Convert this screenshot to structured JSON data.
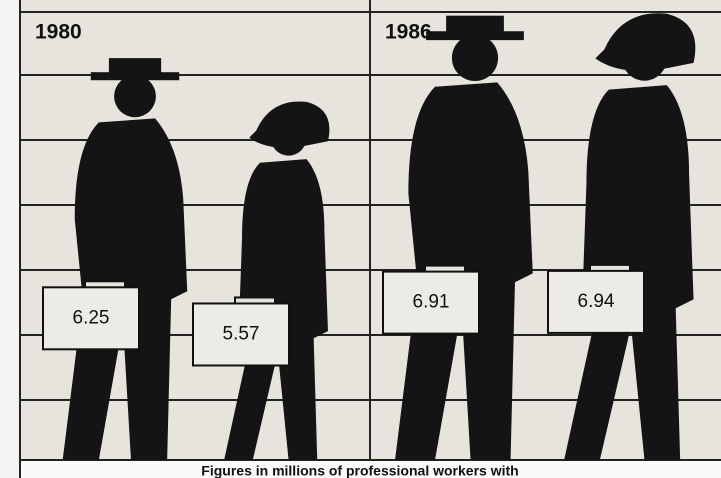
{
  "chart_data": {
    "type": "pictograph",
    "categories": [
      "1980",
      "1986"
    ],
    "series": [
      {
        "color": "#141414",
        "values": [
          6.25,
          6.91
        ]
      },
      {
        "color": "#141414",
        "values": [
          5.57,
          6.94
        ]
      }
    ],
    "caption": "Figures in millions of professional workers with"
  }
}
